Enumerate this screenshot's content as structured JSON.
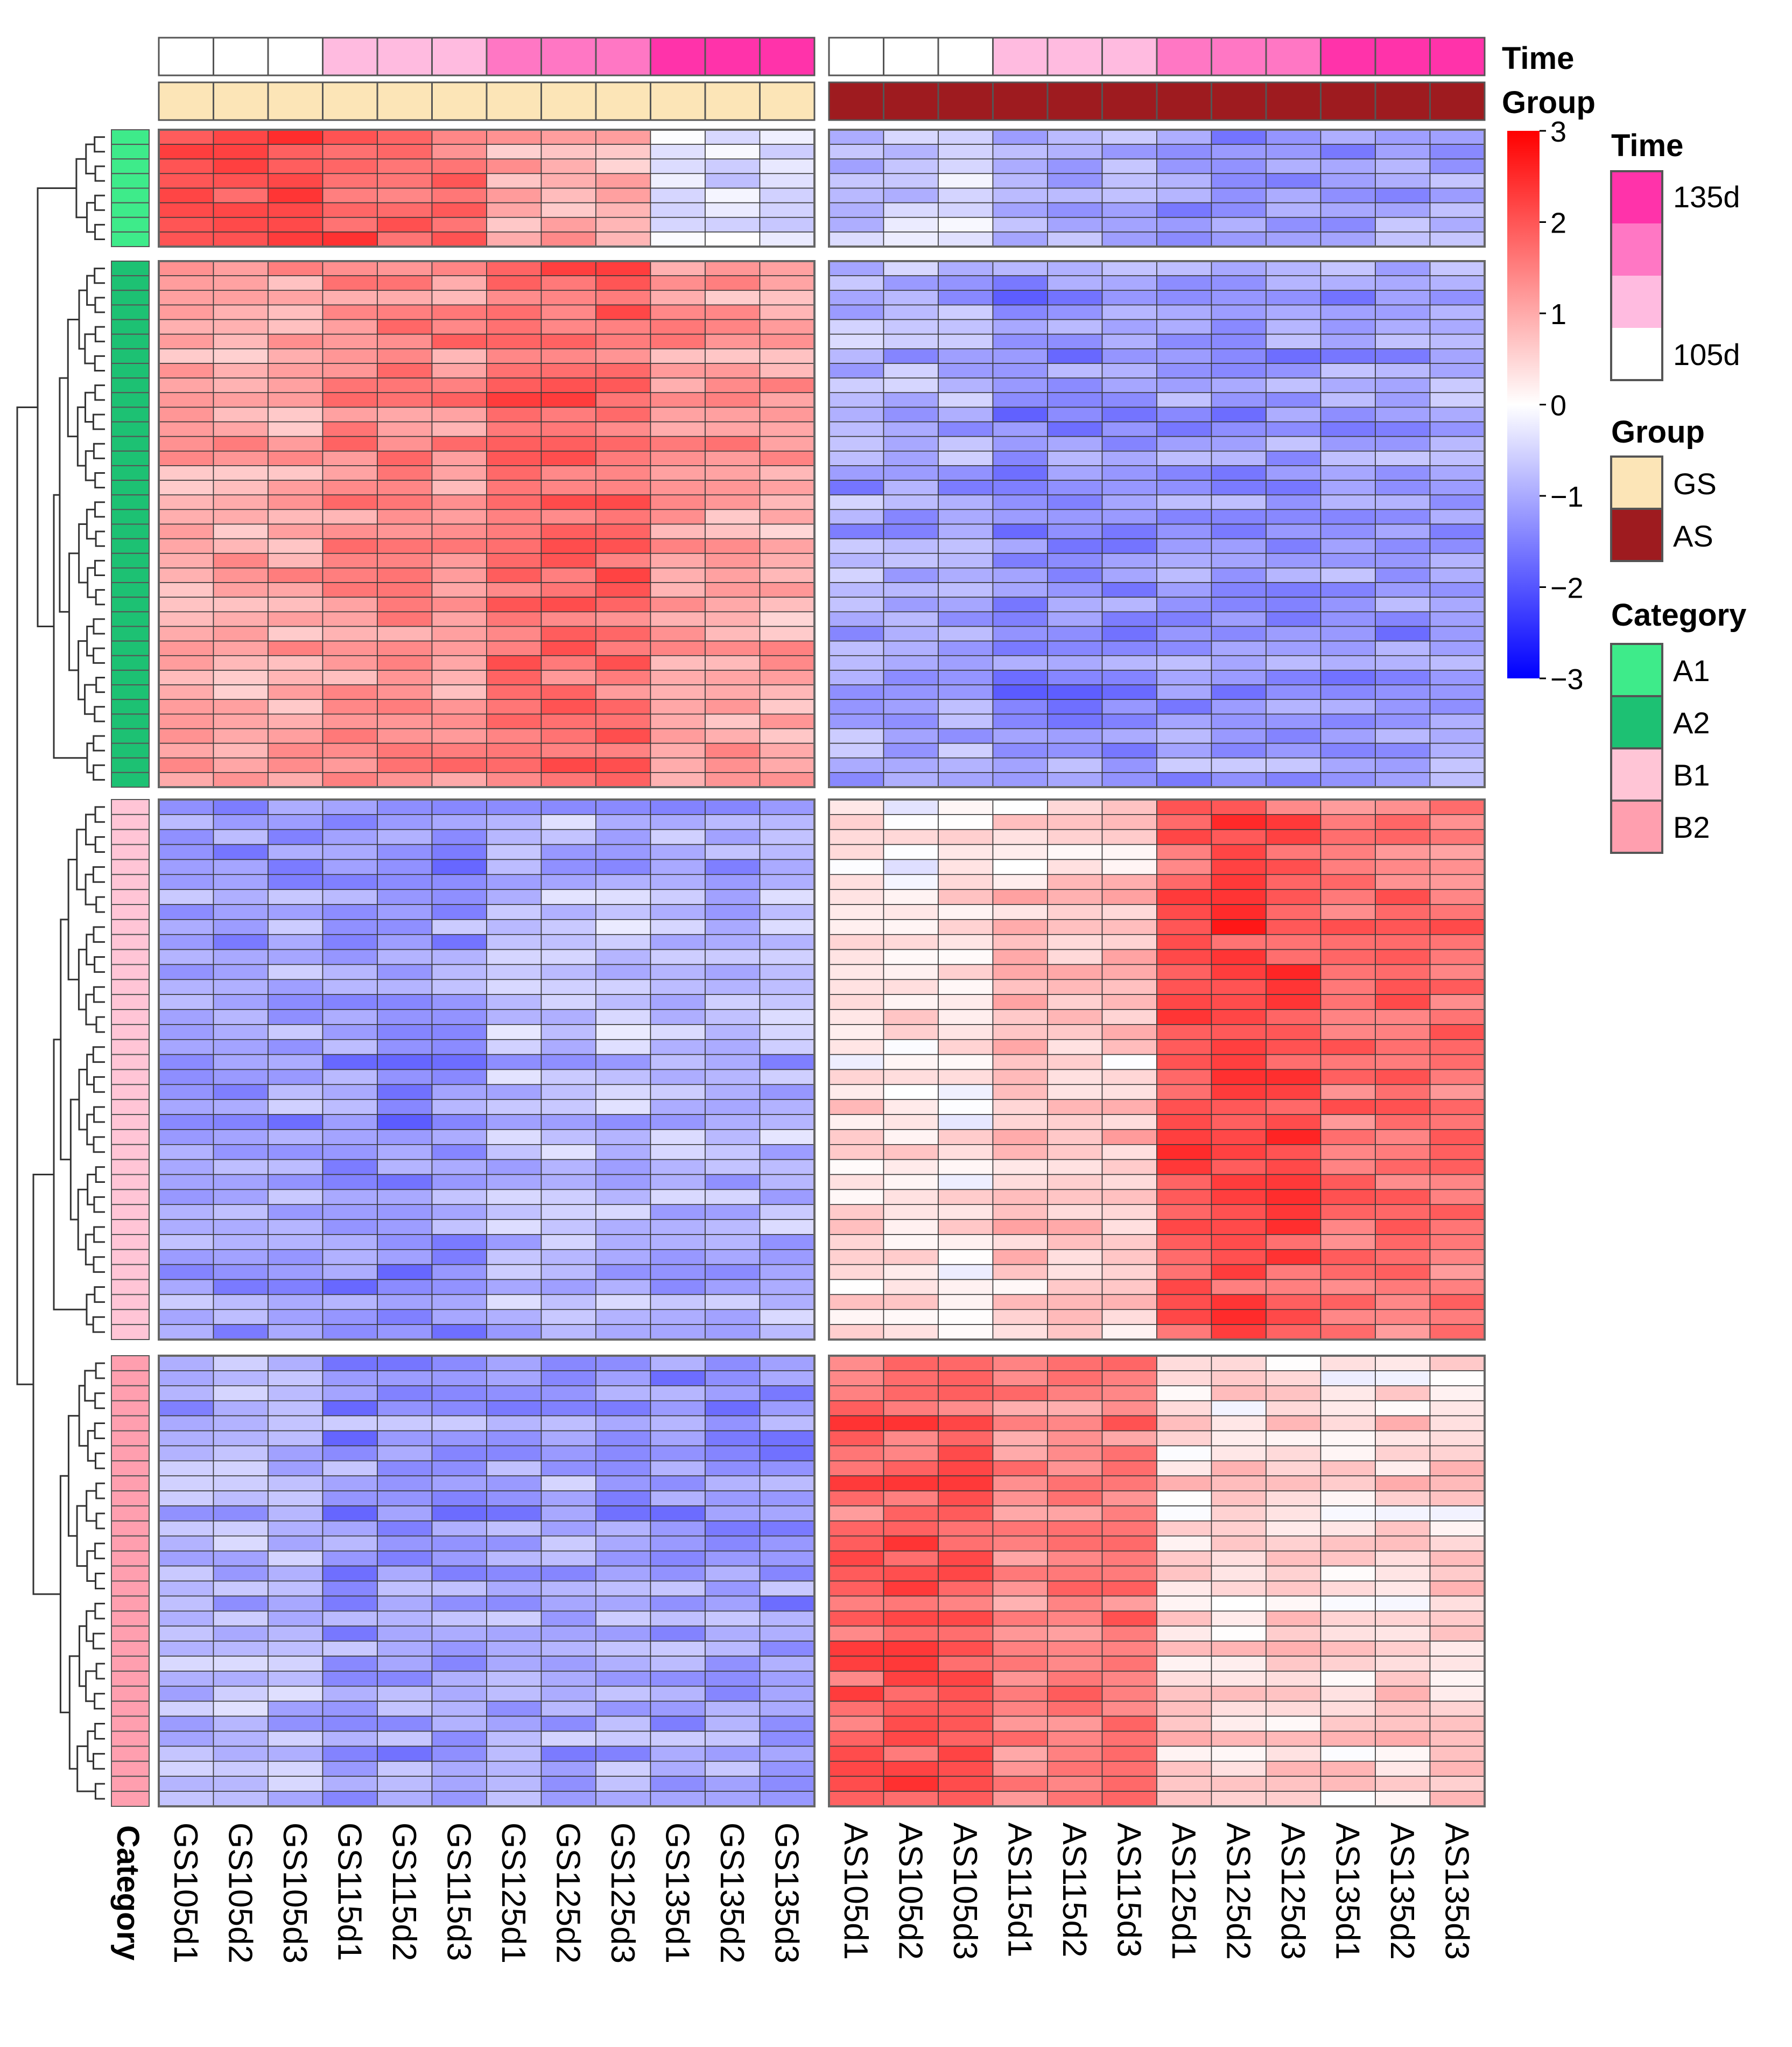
{
  "chart_data": {
    "type": "heatmap",
    "title": "",
    "columns": [
      "GS105d1",
      "GS105d2",
      "GS105d3",
      "GS115d1",
      "GS115d2",
      "GS115d3",
      "GS125d1",
      "GS125d2",
      "GS125d3",
      "GS135d1",
      "GS135d2",
      "GS135d3",
      "AS105d1",
      "AS105d2",
      "AS105d3",
      "AS115d1",
      "AS115d2",
      "AS115d3",
      "AS125d1",
      "AS125d2",
      "AS125d3",
      "AS135d1",
      "AS135d2",
      "AS135d3"
    ],
    "column_annotations": {
      "Time": [
        "105d",
        "105d",
        "105d",
        "115d",
        "115d",
        "115d",
        "125d",
        "125d",
        "125d",
        "135d",
        "135d",
        "135d",
        "105d",
        "105d",
        "105d",
        "115d",
        "115d",
        "115d",
        "125d",
        "125d",
        "125d",
        "135d",
        "135d",
        "135d"
      ],
      "Group": [
        "GS",
        "GS",
        "GS",
        "GS",
        "GS",
        "GS",
        "GS",
        "GS",
        "GS",
        "GS",
        "GS",
        "GS",
        "AS",
        "AS",
        "AS",
        "AS",
        "AS",
        "AS",
        "AS",
        "AS",
        "AS",
        "AS",
        "AS",
        "AS"
      ]
    },
    "row_category_label": "Category",
    "row_blocks": [
      {
        "category": "A1",
        "rows": 8,
        "profile": [
          2.0,
          2.0,
          2.0,
          1.8,
          1.6,
          1.6,
          0.9,
          0.9,
          0.8,
          -0.3,
          -0.4,
          -0.5,
          -0.8,
          -0.6,
          -0.4,
          -1.0,
          -1.1,
          -1.0,
          -1.3,
          -1.4,
          -1.3,
          -1.2,
          -1.1,
          -1.0
        ]
      },
      {
        "category": "A2",
        "rows": 36,
        "profile": [
          1.0,
          1.0,
          1.0,
          1.3,
          1.4,
          1.3,
          1.7,
          1.7,
          1.7,
          1.1,
          1.1,
          1.0,
          -1.0,
          -1.0,
          -1.0,
          -1.4,
          -1.3,
          -1.3,
          -1.2,
          -1.2,
          -1.2,
          -1.2,
          -1.2,
          -1.1
        ]
      },
      {
        "category": "B1",
        "rows": 36,
        "profile": [
          -1.1,
          -1.1,
          -1.1,
          -1.2,
          -1.3,
          -1.2,
          -0.8,
          -0.8,
          -0.8,
          -0.9,
          -0.9,
          -0.9,
          0.3,
          0.2,
          0.2,
          0.6,
          0.6,
          0.6,
          2.0,
          2.1,
          2.0,
          1.6,
          1.6,
          1.6
        ]
      },
      {
        "category": "B2",
        "rows": 30,
        "profile": [
          -0.9,
          -0.9,
          -0.9,
          -1.2,
          -1.2,
          -1.2,
          -1.1,
          -1.1,
          -1.1,
          -1.2,
          -1.2,
          -1.2,
          1.8,
          1.9,
          1.9,
          1.4,
          1.5,
          1.5,
          0.4,
          0.4,
          0.4,
          0.3,
          0.4,
          0.4
        ]
      }
    ],
    "color_scale": {
      "min": -3,
      "max": 3,
      "low": "#0000FF",
      "mid": "#FFFFFF",
      "high": "#FF0000",
      "ticks": [
        3,
        2,
        1,
        0,
        -1,
        -2,
        -3
      ]
    },
    "legend_position": "right",
    "dendrogram": "rows"
  },
  "annotation_labels": {
    "time": "Time",
    "group": "Group"
  },
  "legends": {
    "time": {
      "title": "Time",
      "top_label": "135d",
      "bottom_label": "105d",
      "colors": [
        "#FF33AA",
        "#FF77C4",
        "#FFBBE0",
        "#FFFFFF"
      ]
    },
    "group": {
      "title": "Group",
      "items": [
        {
          "label": "GS",
          "color": "#FCE5B7"
        },
        {
          "label": "AS",
          "color": "#9E1B1F"
        }
      ]
    },
    "category": {
      "title": "Category",
      "items": [
        {
          "label": "A1",
          "color": "#3EEB8A"
        },
        {
          "label": "A2",
          "color": "#1DC173"
        },
        {
          "label": "B1",
          "color": "#FFC5D6"
        },
        {
          "label": "B2",
          "color": "#FF9FAF"
        }
      ]
    }
  },
  "colors": {
    "time": {
      "105d": "#FFFFFF",
      "115d": "#FFBBE0",
      "125d": "#FF77C4",
      "135d": "#FF33AA"
    },
    "group": {
      "GS": "#FCE5B7",
      "AS": "#9E1B1F"
    },
    "category": {
      "A1": "#3EEB8A",
      "A2": "#1DC173",
      "B1": "#FFC5D6",
      "B2": "#FF9FAF"
    }
  }
}
